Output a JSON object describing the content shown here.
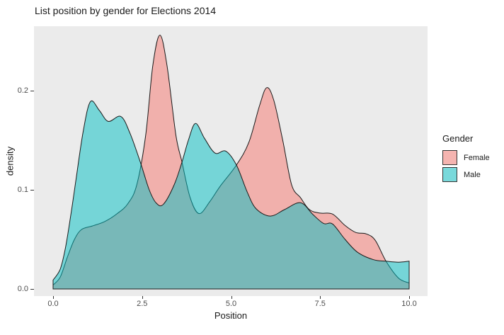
{
  "title": "List position by gender for Elections 2014",
  "chart_data": {
    "type": "area",
    "subtype": "overlapping-density",
    "title": "List position by gender for Elections 2014",
    "xlabel": "Position",
    "ylabel": "density",
    "xlim": [
      0,
      10
    ],
    "ylim": [
      0,
      0.265
    ],
    "x_ticks": [
      "0.0",
      "2.5",
      "5.0",
      "7.5",
      "10.0"
    ],
    "y_ticks": [
      "0.0",
      "0.1",
      "0.2"
    ],
    "grid": false,
    "panel_bg": "#EBEBEB",
    "outline_color": "#1a1a1a",
    "fill_alpha": 0.5,
    "legend_position": "right",
    "legend": {
      "title": "Gender",
      "entries": [
        {
          "label": "Female",
          "color": "#F8766D"
        },
        {
          "label": "Male",
          "color": "#00BFC4"
        }
      ]
    },
    "series": [
      {
        "name": "Female",
        "color": "#F8766D",
        "x": [
          0,
          0.2,
          0.4,
          0.6,
          0.8,
          1.1,
          1.45,
          1.8,
          2.1,
          2.35,
          2.6,
          2.8,
          3.0,
          3.2,
          3.45,
          3.62,
          3.85,
          4.1,
          4.4,
          4.7,
          5.15,
          5.5,
          5.8,
          6.0,
          6.2,
          6.45,
          6.7,
          6.95,
          7.2,
          7.5,
          7.85,
          8.2,
          8.5,
          8.8,
          9.05,
          9.35,
          9.7,
          10
        ],
        "y": [
          0.004,
          0.012,
          0.032,
          0.05,
          0.06,
          0.0635,
          0.068,
          0.076,
          0.086,
          0.105,
          0.155,
          0.225,
          0.256,
          0.225,
          0.155,
          0.128,
          0.092,
          0.076,
          0.088,
          0.104,
          0.125,
          0.148,
          0.185,
          0.203,
          0.19,
          0.15,
          0.105,
          0.092,
          0.08,
          0.0765,
          0.0755,
          0.064,
          0.057,
          0.0555,
          0.049,
          0.028,
          0.011,
          0.006
        ]
      },
      {
        "name": "Male",
        "color": "#00BFC4",
        "x": [
          0,
          0.2,
          0.35,
          0.5,
          0.65,
          0.85,
          1.05,
          1.3,
          1.55,
          1.9,
          2.15,
          2.45,
          2.7,
          2.9,
          3.1,
          3.4,
          3.62,
          3.8,
          4.0,
          4.25,
          4.55,
          4.85,
          5.15,
          5.45,
          5.7,
          6.1,
          6.5,
          6.95,
          7.3,
          7.6,
          7.85,
          8.2,
          8.55,
          9.0,
          9.35,
          9.7,
          10
        ],
        "y": [
          0.009,
          0.02,
          0.042,
          0.075,
          0.112,
          0.16,
          0.189,
          0.18,
          0.169,
          0.174,
          0.158,
          0.128,
          0.1,
          0.0865,
          0.0855,
          0.105,
          0.128,
          0.15,
          0.167,
          0.152,
          0.137,
          0.139,
          0.125,
          0.098,
          0.081,
          0.0735,
          0.08,
          0.087,
          0.075,
          0.066,
          0.0655,
          0.05,
          0.037,
          0.0295,
          0.028,
          0.027,
          0.028
        ]
      }
    ]
  }
}
